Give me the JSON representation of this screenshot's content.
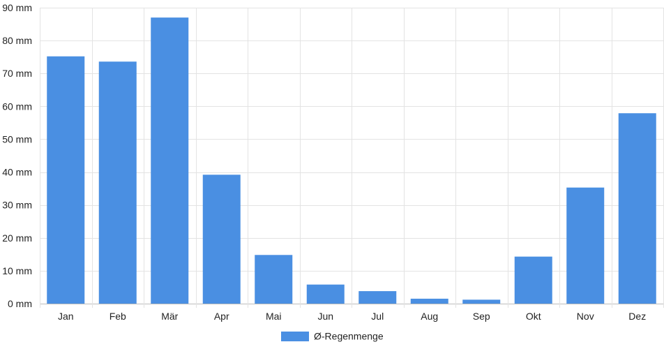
{
  "chart_data": {
    "type": "bar",
    "categories": [
      "Jan",
      "Feb",
      "Mär",
      "Apr",
      "Mai",
      "Jun",
      "Jul",
      "Aug",
      "Sep",
      "Okt",
      "Nov",
      "Dez"
    ],
    "series": [
      {
        "name": "Ø-Regenmenge",
        "color": "#4a8fe2",
        "values": [
          75.2,
          73.6,
          87.0,
          39.2,
          14.8,
          5.8,
          3.8,
          1.5,
          1.2,
          14.3,
          35.3,
          57.9
        ]
      }
    ],
    "y_ticks": [
      "0 mm",
      "10 mm",
      "20 mm",
      "30 mm",
      "40 mm",
      "50 mm",
      "60 mm",
      "70 mm",
      "80 mm",
      "90 mm"
    ],
    "ylim": [
      0,
      90
    ],
    "grid": true,
    "legend_position": "bottom-center"
  }
}
